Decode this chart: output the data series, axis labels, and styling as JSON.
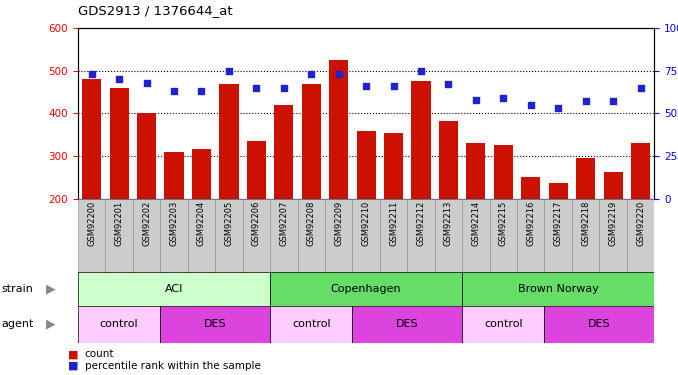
{
  "title": "GDS2913 / 1376644_at",
  "samples": [
    "GSM92200",
    "GSM92201",
    "GSM92202",
    "GSM92203",
    "GSM92204",
    "GSM92205",
    "GSM92206",
    "GSM92207",
    "GSM92208",
    "GSM92209",
    "GSM92210",
    "GSM92211",
    "GSM92212",
    "GSM92213",
    "GSM92214",
    "GSM92215",
    "GSM92216",
    "GSM92217",
    "GSM92218",
    "GSM92219",
    "GSM92220"
  ],
  "counts": [
    480,
    460,
    400,
    310,
    317,
    470,
    335,
    420,
    470,
    525,
    358,
    355,
    475,
    382,
    330,
    325,
    252,
    237,
    295,
    262,
    330
  ],
  "percentiles": [
    73,
    70,
    68,
    63,
    63,
    75,
    65,
    65,
    73,
    73,
    66,
    66,
    75,
    67,
    58,
    59,
    55,
    53,
    57,
    57,
    65
  ],
  "ylim_left": [
    200,
    600
  ],
  "ylim_right": [
    0,
    100
  ],
  "bar_color": "#cc1100",
  "dot_color": "#2222cc",
  "strain_groups": [
    {
      "label": "ACI",
      "start": 0,
      "end": 7,
      "color": "#ccffcc"
    },
    {
      "label": "Copenhagen",
      "start": 7,
      "end": 14,
      "color": "#66dd66"
    },
    {
      "label": "Brown Norway",
      "start": 14,
      "end": 21,
      "color": "#66dd66"
    }
  ],
  "agent_groups": [
    {
      "label": "control",
      "start": 0,
      "end": 3,
      "color": "#ffccff"
    },
    {
      "label": "DES",
      "start": 3,
      "end": 7,
      "color": "#dd44dd"
    },
    {
      "label": "control",
      "start": 7,
      "end": 10,
      "color": "#ffccff"
    },
    {
      "label": "DES",
      "start": 10,
      "end": 14,
      "color": "#dd44dd"
    },
    {
      "label": "control",
      "start": 14,
      "end": 17,
      "color": "#ffccff"
    },
    {
      "label": "DES",
      "start": 17,
      "end": 21,
      "color": "#dd44dd"
    }
  ]
}
